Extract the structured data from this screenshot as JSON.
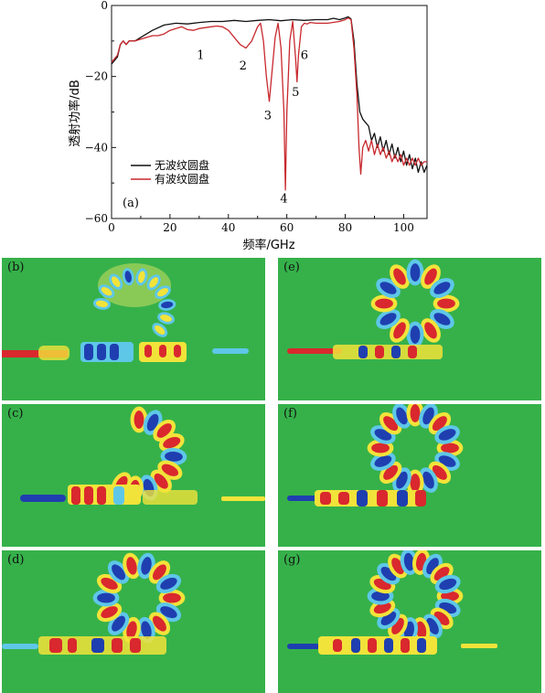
{
  "chart_data": {
    "type": "line",
    "label": "(a)",
    "xlabel": "频率/GHz",
    "ylabel": "透射功率/dB",
    "xlim": [
      0,
      108
    ],
    "ylim": [
      -60,
      0
    ],
    "xticks": [
      0,
      20,
      40,
      60,
      80,
      100
    ],
    "yticks": [
      0,
      -20,
      -40,
      -60
    ],
    "legend_position": "lower-left",
    "series": [
      {
        "name": "无波纹圆盘",
        "color": "#111111",
        "points": [
          [
            0,
            -16.5
          ],
          [
            1,
            -15.5
          ],
          [
            2,
            -14.5
          ],
          [
            3,
            -11
          ],
          [
            4,
            -10
          ],
          [
            5,
            -11
          ],
          [
            6,
            -10
          ],
          [
            8,
            -10
          ],
          [
            10,
            -9
          ],
          [
            14,
            -7
          ],
          [
            18,
            -5.5
          ],
          [
            22,
            -5
          ],
          [
            26,
            -5.2
          ],
          [
            30,
            -4.8
          ],
          [
            34,
            -4.5
          ],
          [
            38,
            -4.5
          ],
          [
            42,
            -4.2
          ],
          [
            46,
            -4.5
          ],
          [
            50,
            -4.2
          ],
          [
            54,
            -4
          ],
          [
            58,
            -4.3
          ],
          [
            62,
            -4
          ],
          [
            66,
            -4.2
          ],
          [
            70,
            -4
          ],
          [
            74,
            -4
          ],
          [
            76,
            -3.6
          ],
          [
            78,
            -4
          ],
          [
            80,
            -3.5
          ],
          [
            81,
            -3.2
          ],
          [
            82,
            -3.8
          ],
          [
            83,
            -10
          ],
          [
            84,
            -22
          ],
          [
            85,
            -30
          ],
          [
            86,
            -32
          ],
          [
            87,
            -33
          ],
          [
            88,
            -34
          ],
          [
            89,
            -38
          ],
          [
            90,
            -36
          ],
          [
            91,
            -40
          ],
          [
            92,
            -37
          ],
          [
            93,
            -41
          ],
          [
            94,
            -38
          ],
          [
            95,
            -42
          ],
          [
            96,
            -39
          ],
          [
            97,
            -43
          ],
          [
            98,
            -40
          ],
          [
            99,
            -44
          ],
          [
            100,
            -41
          ],
          [
            101,
            -45
          ],
          [
            102,
            -42
          ],
          [
            103,
            -46
          ],
          [
            104,
            -43
          ],
          [
            105,
            -47
          ],
          [
            106,
            -44
          ],
          [
            107,
            -47
          ],
          [
            108,
            -45
          ]
        ]
      },
      {
        "name": "有波纹圆盘",
        "color": "#c8282d",
        "points": [
          [
            0,
            -16
          ],
          [
            1,
            -15
          ],
          [
            2,
            -14
          ],
          [
            3,
            -11
          ],
          [
            4,
            -10
          ],
          [
            5,
            -11
          ],
          [
            6,
            -10
          ],
          [
            8,
            -10
          ],
          [
            10,
            -9.5
          ],
          [
            12,
            -9
          ],
          [
            14,
            -8.5
          ],
          [
            16,
            -8.5
          ],
          [
            18,
            -8
          ],
          [
            20,
            -7
          ],
          [
            22,
            -6.5
          ],
          [
            24,
            -6
          ],
          [
            26,
            -6.8
          ],
          [
            28,
            -7
          ],
          [
            30,
            -6.5
          ],
          [
            34,
            -6
          ],
          [
            36,
            -5.8
          ],
          [
            38,
            -6
          ],
          [
            40,
            -7
          ],
          [
            42,
            -9
          ],
          [
            44,
            -11
          ],
          [
            46,
            -12
          ],
          [
            48,
            -10
          ],
          [
            50,
            -6
          ],
          [
            51,
            -5
          ],
          [
            52,
            -10
          ],
          [
            53,
            -20
          ],
          [
            54,
            -27
          ],
          [
            55,
            -18
          ],
          [
            56,
            -9
          ],
          [
            57,
            -5
          ],
          [
            58,
            -12
          ],
          [
            59,
            -30
          ],
          [
            59.5,
            -52
          ],
          [
            60,
            -30
          ],
          [
            61,
            -10
          ],
          [
            62,
            -4.5
          ],
          [
            63,
            -15
          ],
          [
            63.5,
            -21.5
          ],
          [
            64,
            -14
          ],
          [
            65,
            -6
          ],
          [
            66,
            -5
          ],
          [
            67,
            -5.2
          ],
          [
            68,
            -4.8
          ],
          [
            70,
            -5
          ],
          [
            74,
            -5
          ],
          [
            78,
            -4.5
          ],
          [
            80,
            -4
          ],
          [
            81,
            -3.5
          ],
          [
            82,
            -4
          ],
          [
            83,
            -12
          ],
          [
            84,
            -25
          ],
          [
            84.7,
            -40
          ],
          [
            85.3,
            -47.5
          ],
          [
            86,
            -40
          ],
          [
            87,
            -38
          ],
          [
            88,
            -41
          ],
          [
            89,
            -38
          ],
          [
            90,
            -42
          ],
          [
            91,
            -39
          ],
          [
            92,
            -42
          ],
          [
            93,
            -40
          ],
          [
            94,
            -43
          ],
          [
            95,
            -41
          ],
          [
            96,
            -44
          ],
          [
            97,
            -42
          ],
          [
            98,
            -44
          ],
          [
            99,
            -42
          ],
          [
            100,
            -45
          ],
          [
            101,
            -43
          ],
          [
            102,
            -45
          ],
          [
            103,
            -43
          ],
          [
            104,
            -45
          ],
          [
            105,
            -43
          ],
          [
            106,
            -45
          ],
          [
            107,
            -44
          ],
          [
            108,
            -44
          ]
        ]
      }
    ],
    "annotations": [
      {
        "text": "1",
        "x": 30.5,
        "y": -15
      },
      {
        "text": "2",
        "x": 45,
        "y": -18
      },
      {
        "text": "3",
        "x": 53.5,
        "y": -32
      },
      {
        "text": "4",
        "x": 59,
        "y": -55.5
      },
      {
        "text": "5",
        "x": 63,
        "y": -25.5
      },
      {
        "text": "6",
        "x": 66,
        "y": -15
      }
    ]
  },
  "panels": [
    {
      "label": "(b)"
    },
    {
      "label": "(c)"
    },
    {
      "label": "(d)"
    },
    {
      "label": "(e)"
    },
    {
      "label": "(f)"
    },
    {
      "label": "(g)"
    }
  ],
  "colors": {
    "field_bg": "#36b14a",
    "positive": "#d9282e",
    "negative": "#1f3fb0",
    "mid_pos": "#f2e33a",
    "mid_neg": "#5ec7e8"
  }
}
